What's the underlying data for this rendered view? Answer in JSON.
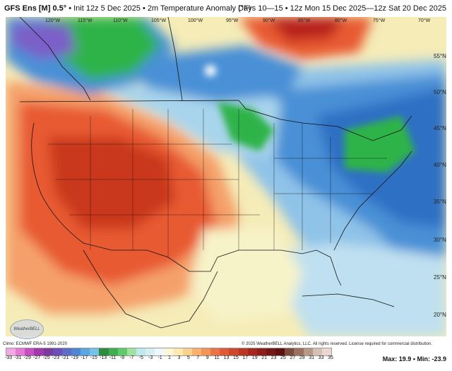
{
  "header": {
    "model": "GFS Ens [M] 0.5°",
    "init": "Init 12z 5 Dec 2025",
    "product": "2m Temperature Anomaly (°F)",
    "valid": "Days 10—15 • 12z Mon 15 Dec 2025—12z Sat 20 Dec 2025"
  },
  "map": {
    "lon_labels": [
      "120°W",
      "115°W",
      "110°W",
      "105°W",
      "100°W",
      "95°W",
      "90°W",
      "85°W",
      "80°W",
      "75°W",
      "70°W"
    ],
    "lat_labels": [
      "55°N",
      "50°N",
      "45°N",
      "40°N",
      "35°N",
      "30°N",
      "25°N",
      "20°N"
    ],
    "colors": {
      "very_warm": "#b8241e",
      "warm": "#e85a32",
      "mild": "#f5a06a",
      "slight": "#fde2a8",
      "neutral": "#f7f3c9",
      "cool": "#a8d4ec",
      "cold": "#4a90d6",
      "colder": "#2f6fc4",
      "green": "#2eb34a",
      "purple": "#7b5fc8"
    }
  },
  "footer": {
    "climo": "Climo: ECMWF ERA-5 1991-2020",
    "copyright": "© 2025 WeatherBELL Analytics, LLC. All rights reserved. License required for commercial distribution.",
    "logo": "WeatherBELL",
    "max_label": "Max: 19.9",
    "min_label": "Min: -23.9"
  },
  "colorbar": {
    "ticks": [
      "-33",
      "-31",
      "-29",
      "-27",
      "-25",
      "-23",
      "-21",
      "-19",
      "-17",
      "-15",
      "-13",
      "-11",
      "-9",
      "-7",
      "-5",
      "-3",
      "-1",
      "1",
      "3",
      "5",
      "7",
      "9",
      "11",
      "13",
      "15",
      "17",
      "19",
      "21",
      "23",
      "25",
      "27",
      "29",
      "31",
      "33",
      "35"
    ],
    "colors": [
      "#f2a8e6",
      "#e47ad6",
      "#c84fc2",
      "#9e3aae",
      "#7a3a9e",
      "#6a4fb8",
      "#5d6cc8",
      "#4f86d4",
      "#5aa6e0",
      "#74c1ea",
      "#2e8c3e",
      "#3fae4e",
      "#5fca6a",
      "#9ee2a0",
      "#bfe8f0",
      "#d8eef5",
      "#eef7fb",
      "#fbf6d4",
      "#fde8b0",
      "#fbd08c",
      "#f7b06e",
      "#f39356",
      "#ec7444",
      "#e05a36",
      "#cf462a",
      "#bb3624",
      "#a52820",
      "#8e1e1a",
      "#741614",
      "#5e1010",
      "#7a4a3a",
      "#9c7060",
      "#b89888",
      "#d6c0b4",
      "#ead8d0"
    ]
  }
}
